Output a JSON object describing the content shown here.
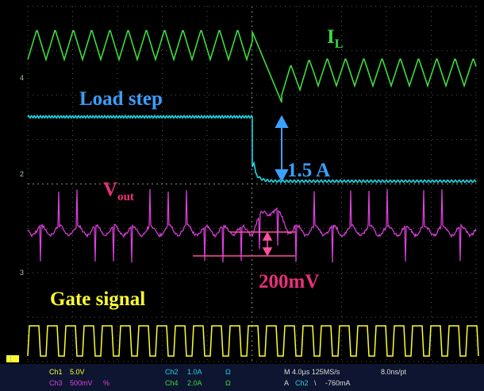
{
  "annotations": {
    "il": {
      "main": "I",
      "sub": "L"
    },
    "load_step": "Load step",
    "current_step": "1.5 A",
    "vout": {
      "main": "V",
      "sub": "out"
    },
    "ripple": "200mV",
    "gate": "Gate signal"
  },
  "channel_markers": [
    "4",
    "2",
    "3",
    "1"
  ],
  "status_bar": {
    "ch1": [
      "Ch1",
      "5.0V"
    ],
    "ch3": [
      "Ch3",
      "500mV",
      "%"
    ],
    "ch2": [
      "Ch2",
      "1.0A",
      "Ω"
    ],
    "ch4": [
      "Ch4",
      "2.0A",
      "Ω"
    ],
    "timebase": [
      "M 4.0µs 125MS/s",
      "8.0ns/pt"
    ],
    "trigger": [
      "A",
      "Ch2",
      "\\",
      "-760mA"
    ]
  }
}
